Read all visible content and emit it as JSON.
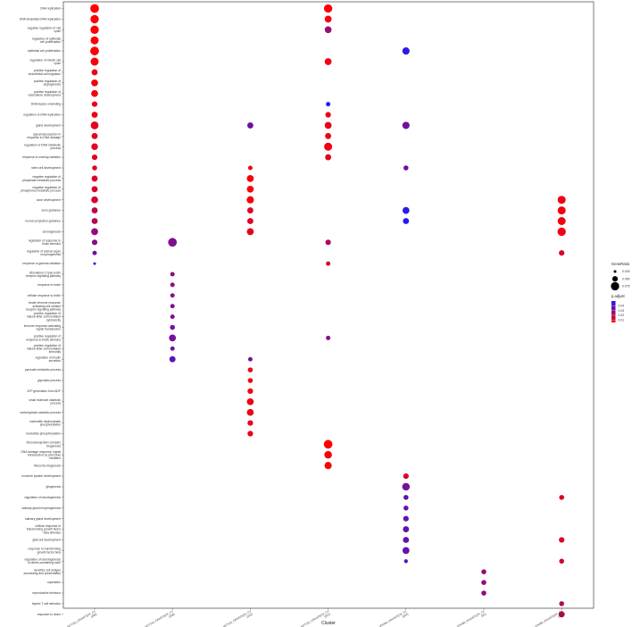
{
  "chart_data": {
    "type": "scatter",
    "title": "",
    "xlabel": "Cluster",
    "ylabel": "",
    "clusters": [
      "HCT116_CRisWT(OX_C1\n(408)",
      "HCT116_CRisWT(OX_C2\n(108)",
      "HCT116_CRisWT(OX_C3\n(313)",
      "HCT116_CRisWT(OX_C4\n(537)",
      "SW480_KOchNT(OX_C1\n(204)",
      "SW480_KOchNT(OX_C2\n(63)",
      "SW480_KOchNT(OX_C3\n(198)"
    ],
    "terms": [
      "DNA replication",
      "DNA-templated DNA replication",
      "negative regulation of cell\ncycle",
      "regulation of epithelial\ncell proliferation",
      "epithelial cell proliferation",
      "regulation of mitotic cell\ncycle",
      "positive regulation of\nendothelial cell migration",
      "positive regulation of\nangiogenesis",
      "positive regulation of\nvasculature development",
      "DNA duplex unwinding",
      "regulation of DNA replication",
      "gland development",
      "signal transduction in\nresponse to DNA damage",
      "regulation of DNA metabolic\nprocess",
      "response to ionizing radiation",
      "stem cell development",
      "negative regulation of\nphosphate metabolic process",
      "negative regulation of\nphosphorus metabolic process",
      "axon development",
      "axon guidance",
      "neuron projection guidance",
      "axonogenesis",
      "regulation of response to\nbiotic stimulus",
      "regulation of animal organ\nmorphogenesis",
      "response to gamma radiation",
      "stimulatory C-type lectin\nreceptor signaling pathway",
      "response to lectin",
      "cellular response to lectin",
      "innate immune response\nactivating cell surface\nreceptor signaling pathway",
      "positive regulation of\nnatural killer cell mediated\ncytotoxicity",
      "immune response-activating\nsignal transduction",
      "positive regulation of\nresponse to biotic stimulus",
      "positive regulation of\nnatural killer cell mediated\nimmunity",
      "regulation of insulin\nsecretion",
      "pyruvate metabolic process",
      "glycolytic process",
      "ATP generation from ADP",
      "small molecule catabolic\nprocess",
      "carbohydrate catabolic process",
      "nucleotide dephosphate\nphosphorylation",
      "nucleotide phosphorylation",
      "ribonucleoprotein complex\nbiogenesis",
      "DNA damage response, signal\ntransduction by p53 class\nmediator",
      "ribosome biogenesis",
      "exocrine system development",
      "gliogenesis",
      "regulation of odontogenesis",
      "salivary gland morphogenesis",
      "salivary gland development",
      "cellular response to\ntransforming growth factor\nbeta stimulus",
      "glial cell development",
      "response to transforming\ngrowth factor beta",
      "regulation of odontogenesis\nof dentin-containing tooth",
      "dendritic cell antigen\nprocessing and presentation",
      "copulation",
      "reproductive behavior",
      "thymic T cell selection",
      "response to redox"
    ],
    "points": [
      {
        "term": 0,
        "cluster": 0,
        "gene_ratio": 0.078,
        "p_adjust": 0.005
      },
      {
        "term": 1,
        "cluster": 0,
        "gene_ratio": 0.075,
        "p_adjust": 0.005
      },
      {
        "term": 2,
        "cluster": 0,
        "gene_ratio": 0.075,
        "p_adjust": 0.006
      },
      {
        "term": 3,
        "cluster": 0,
        "gene_ratio": 0.072,
        "p_adjust": 0.006
      },
      {
        "term": 4,
        "cluster": 0,
        "gene_ratio": 0.078,
        "p_adjust": 0.006
      },
      {
        "term": 5,
        "cluster": 0,
        "gene_ratio": 0.072,
        "p_adjust": 0.007
      },
      {
        "term": 6,
        "cluster": 0,
        "gene_ratio": 0.055,
        "p_adjust": 0.008
      },
      {
        "term": 7,
        "cluster": 0,
        "gene_ratio": 0.062,
        "p_adjust": 0.008
      },
      {
        "term": 8,
        "cluster": 0,
        "gene_ratio": 0.062,
        "p_adjust": 0.008
      },
      {
        "term": 9,
        "cluster": 0,
        "gene_ratio": 0.05,
        "p_adjust": 0.009
      },
      {
        "term": 10,
        "cluster": 0,
        "gene_ratio": 0.055,
        "p_adjust": 0.009
      },
      {
        "term": 11,
        "cluster": 0,
        "gene_ratio": 0.07,
        "p_adjust": 0.01
      },
      {
        "term": 12,
        "cluster": 0,
        "gene_ratio": 0.055,
        "p_adjust": 0.01
      },
      {
        "term": 13,
        "cluster": 0,
        "gene_ratio": 0.06,
        "p_adjust": 0.011
      },
      {
        "term": 14,
        "cluster": 0,
        "gene_ratio": 0.05,
        "p_adjust": 0.011
      },
      {
        "term": 15,
        "cluster": 0,
        "gene_ratio": 0.045,
        "p_adjust": 0.012
      },
      {
        "term": 16,
        "cluster": 0,
        "gene_ratio": 0.055,
        "p_adjust": 0.012
      },
      {
        "term": 17,
        "cluster": 0,
        "gene_ratio": 0.055,
        "p_adjust": 0.013
      },
      {
        "term": 18,
        "cluster": 0,
        "gene_ratio": 0.062,
        "p_adjust": 0.013
      },
      {
        "term": 19,
        "cluster": 0,
        "gene_ratio": 0.055,
        "p_adjust": 0.018
      },
      {
        "term": 20,
        "cluster": 0,
        "gene_ratio": 0.055,
        "p_adjust": 0.02
      },
      {
        "term": 21,
        "cluster": 0,
        "gene_ratio": 0.062,
        "p_adjust": 0.026
      },
      {
        "term": 22,
        "cluster": 0,
        "gene_ratio": 0.05,
        "p_adjust": 0.03
      },
      {
        "term": 23,
        "cluster": 0,
        "gene_ratio": 0.04,
        "p_adjust": 0.034
      },
      {
        "term": 24,
        "cluster": 0,
        "gene_ratio": 0.025,
        "p_adjust": 0.043
      },
      {
        "term": 22,
        "cluster": 1,
        "gene_ratio": 0.078,
        "p_adjust": 0.03
      },
      {
        "term": 25,
        "cluster": 1,
        "gene_ratio": 0.04,
        "p_adjust": 0.028
      },
      {
        "term": 26,
        "cluster": 1,
        "gene_ratio": 0.04,
        "p_adjust": 0.028
      },
      {
        "term": 27,
        "cluster": 1,
        "gene_ratio": 0.04,
        "p_adjust": 0.028
      },
      {
        "term": 28,
        "cluster": 1,
        "gene_ratio": 0.04,
        "p_adjust": 0.03
      },
      {
        "term": 29,
        "cluster": 1,
        "gene_ratio": 0.04,
        "p_adjust": 0.03
      },
      {
        "term": 30,
        "cluster": 1,
        "gene_ratio": 0.045,
        "p_adjust": 0.032
      },
      {
        "term": 31,
        "cluster": 1,
        "gene_ratio": 0.062,
        "p_adjust": 0.032
      },
      {
        "term": 32,
        "cluster": 1,
        "gene_ratio": 0.04,
        "p_adjust": 0.034
      },
      {
        "term": 33,
        "cluster": 1,
        "gene_ratio": 0.055,
        "p_adjust": 0.038
      },
      {
        "term": 11,
        "cluster": 2,
        "gene_ratio": 0.055,
        "p_adjust": 0.034
      },
      {
        "term": 15,
        "cluster": 2,
        "gene_ratio": 0.04,
        "p_adjust": 0.008
      },
      {
        "term": 16,
        "cluster": 2,
        "gene_ratio": 0.062,
        "p_adjust": 0.006
      },
      {
        "term": 17,
        "cluster": 2,
        "gene_ratio": 0.062,
        "p_adjust": 0.006
      },
      {
        "term": 18,
        "cluster": 2,
        "gene_ratio": 0.065,
        "p_adjust": 0.007
      },
      {
        "term": 19,
        "cluster": 2,
        "gene_ratio": 0.055,
        "p_adjust": 0.012
      },
      {
        "term": 20,
        "cluster": 2,
        "gene_ratio": 0.055,
        "p_adjust": 0.012
      },
      {
        "term": 21,
        "cluster": 2,
        "gene_ratio": 0.062,
        "p_adjust": 0.01
      },
      {
        "term": 33,
        "cluster": 2,
        "gene_ratio": 0.04,
        "p_adjust": 0.03
      },
      {
        "term": 34,
        "cluster": 2,
        "gene_ratio": 0.045,
        "p_adjust": 0.008
      },
      {
        "term": 35,
        "cluster": 2,
        "gene_ratio": 0.045,
        "p_adjust": 0.008
      },
      {
        "term": 36,
        "cluster": 2,
        "gene_ratio": 0.05,
        "p_adjust": 0.008
      },
      {
        "term": 37,
        "cluster": 2,
        "gene_ratio": 0.062,
        "p_adjust": 0.009
      },
      {
        "term": 38,
        "cluster": 2,
        "gene_ratio": 0.062,
        "p_adjust": 0.009
      },
      {
        "term": 39,
        "cluster": 2,
        "gene_ratio": 0.05,
        "p_adjust": 0.01
      },
      {
        "term": 40,
        "cluster": 2,
        "gene_ratio": 0.05,
        "p_adjust": 0.01
      },
      {
        "term": 0,
        "cluster": 3,
        "gene_ratio": 0.075,
        "p_adjust": 0.006
      },
      {
        "term": 1,
        "cluster": 3,
        "gene_ratio": 0.062,
        "p_adjust": 0.007
      },
      {
        "term": 2,
        "cluster": 3,
        "gene_ratio": 0.062,
        "p_adjust": 0.025
      },
      {
        "term": 5,
        "cluster": 3,
        "gene_ratio": 0.062,
        "p_adjust": 0.008
      },
      {
        "term": 9,
        "cluster": 3,
        "gene_ratio": 0.04,
        "p_adjust": 0.05
      },
      {
        "term": 10,
        "cluster": 3,
        "gene_ratio": 0.05,
        "p_adjust": 0.009
      },
      {
        "term": 11,
        "cluster": 3,
        "gene_ratio": 0.062,
        "p_adjust": 0.01
      },
      {
        "term": 12,
        "cluster": 3,
        "gene_ratio": 0.055,
        "p_adjust": 0.009
      },
      {
        "term": 13,
        "cluster": 3,
        "gene_ratio": 0.072,
        "p_adjust": 0.008
      },
      {
        "term": 14,
        "cluster": 3,
        "gene_ratio": 0.055,
        "p_adjust": 0.011
      },
      {
        "term": 22,
        "cluster": 3,
        "gene_ratio": 0.05,
        "p_adjust": 0.02
      },
      {
        "term": 24,
        "cluster": 3,
        "gene_ratio": 0.04,
        "p_adjust": 0.012
      },
      {
        "term": 31,
        "cluster": 3,
        "gene_ratio": 0.04,
        "p_adjust": 0.028
      },
      {
        "term": 41,
        "cluster": 3,
        "gene_ratio": 0.078,
        "p_adjust": 0.005
      },
      {
        "term": 42,
        "cluster": 3,
        "gene_ratio": 0.068,
        "p_adjust": 0.007
      },
      {
        "term": 43,
        "cluster": 3,
        "gene_ratio": 0.065,
        "p_adjust": 0.006
      },
      {
        "term": 4,
        "cluster": 4,
        "gene_ratio": 0.065,
        "p_adjust": 0.046
      },
      {
        "term": 11,
        "cluster": 4,
        "gene_ratio": 0.065,
        "p_adjust": 0.034
      },
      {
        "term": 15,
        "cluster": 4,
        "gene_ratio": 0.045,
        "p_adjust": 0.034
      },
      {
        "term": 19,
        "cluster": 4,
        "gene_ratio": 0.062,
        "p_adjust": 0.046
      },
      {
        "term": 20,
        "cluster": 4,
        "gene_ratio": 0.055,
        "p_adjust": 0.048
      },
      {
        "term": 44,
        "cluster": 4,
        "gene_ratio": 0.05,
        "p_adjust": 0.012
      },
      {
        "term": 45,
        "cluster": 4,
        "gene_ratio": 0.068,
        "p_adjust": 0.032
      },
      {
        "term": 46,
        "cluster": 4,
        "gene_ratio": 0.045,
        "p_adjust": 0.036
      },
      {
        "term": 47,
        "cluster": 4,
        "gene_ratio": 0.045,
        "p_adjust": 0.036
      },
      {
        "term": 48,
        "cluster": 4,
        "gene_ratio": 0.05,
        "p_adjust": 0.036
      },
      {
        "term": 49,
        "cluster": 4,
        "gene_ratio": 0.055,
        "p_adjust": 0.036
      },
      {
        "term": 50,
        "cluster": 4,
        "gene_ratio": 0.055,
        "p_adjust": 0.036
      },
      {
        "term": 51,
        "cluster": 4,
        "gene_ratio": 0.062,
        "p_adjust": 0.036
      },
      {
        "term": 52,
        "cluster": 4,
        "gene_ratio": 0.035,
        "p_adjust": 0.038
      },
      {
        "term": 53,
        "cluster": 5,
        "gene_ratio": 0.045,
        "p_adjust": 0.026
      },
      {
        "term": 54,
        "cluster": 5,
        "gene_ratio": 0.045,
        "p_adjust": 0.026
      },
      {
        "term": 55,
        "cluster": 5,
        "gene_ratio": 0.045,
        "p_adjust": 0.028
      },
      {
        "term": 18,
        "cluster": 6,
        "gene_ratio": 0.072,
        "p_adjust": 0.008
      },
      {
        "term": 19,
        "cluster": 6,
        "gene_ratio": 0.072,
        "p_adjust": 0.008
      },
      {
        "term": 20,
        "cluster": 6,
        "gene_ratio": 0.072,
        "p_adjust": 0.008
      },
      {
        "term": 21,
        "cluster": 6,
        "gene_ratio": 0.075,
        "p_adjust": 0.008
      },
      {
        "term": 23,
        "cluster": 6,
        "gene_ratio": 0.05,
        "p_adjust": 0.012
      },
      {
        "term": 46,
        "cluster": 6,
        "gene_ratio": 0.045,
        "p_adjust": 0.012
      },
      {
        "term": 50,
        "cluster": 6,
        "gene_ratio": 0.05,
        "p_adjust": 0.012
      },
      {
        "term": 52,
        "cluster": 6,
        "gene_ratio": 0.045,
        "p_adjust": 0.014
      },
      {
        "term": 56,
        "cluster": 6,
        "gene_ratio": 0.045,
        "p_adjust": 0.02
      },
      {
        "term": 57,
        "cluster": 6,
        "gene_ratio": 0.055,
        "p_adjust": 0.018
      }
    ],
    "legend": {
      "size_title": "GeneRatio",
      "size_ticks": [
        0.025,
        0.05,
        0.075
      ],
      "size_labels": [
        "0.025",
        "0.050",
        "0.075"
      ],
      "color_title": "p.adjust",
      "color_ticks": [
        0.04,
        0.03,
        0.02,
        0.01
      ],
      "color_labels": [
        "0.04",
        "0.03",
        "0.02",
        "0.01"
      ],
      "color_range": [
        0.005,
        0.05
      ],
      "color_low_p": "#ff0000",
      "color_high_p": "#1a1aff",
      "placement": "right"
    },
    "grid": false
  }
}
